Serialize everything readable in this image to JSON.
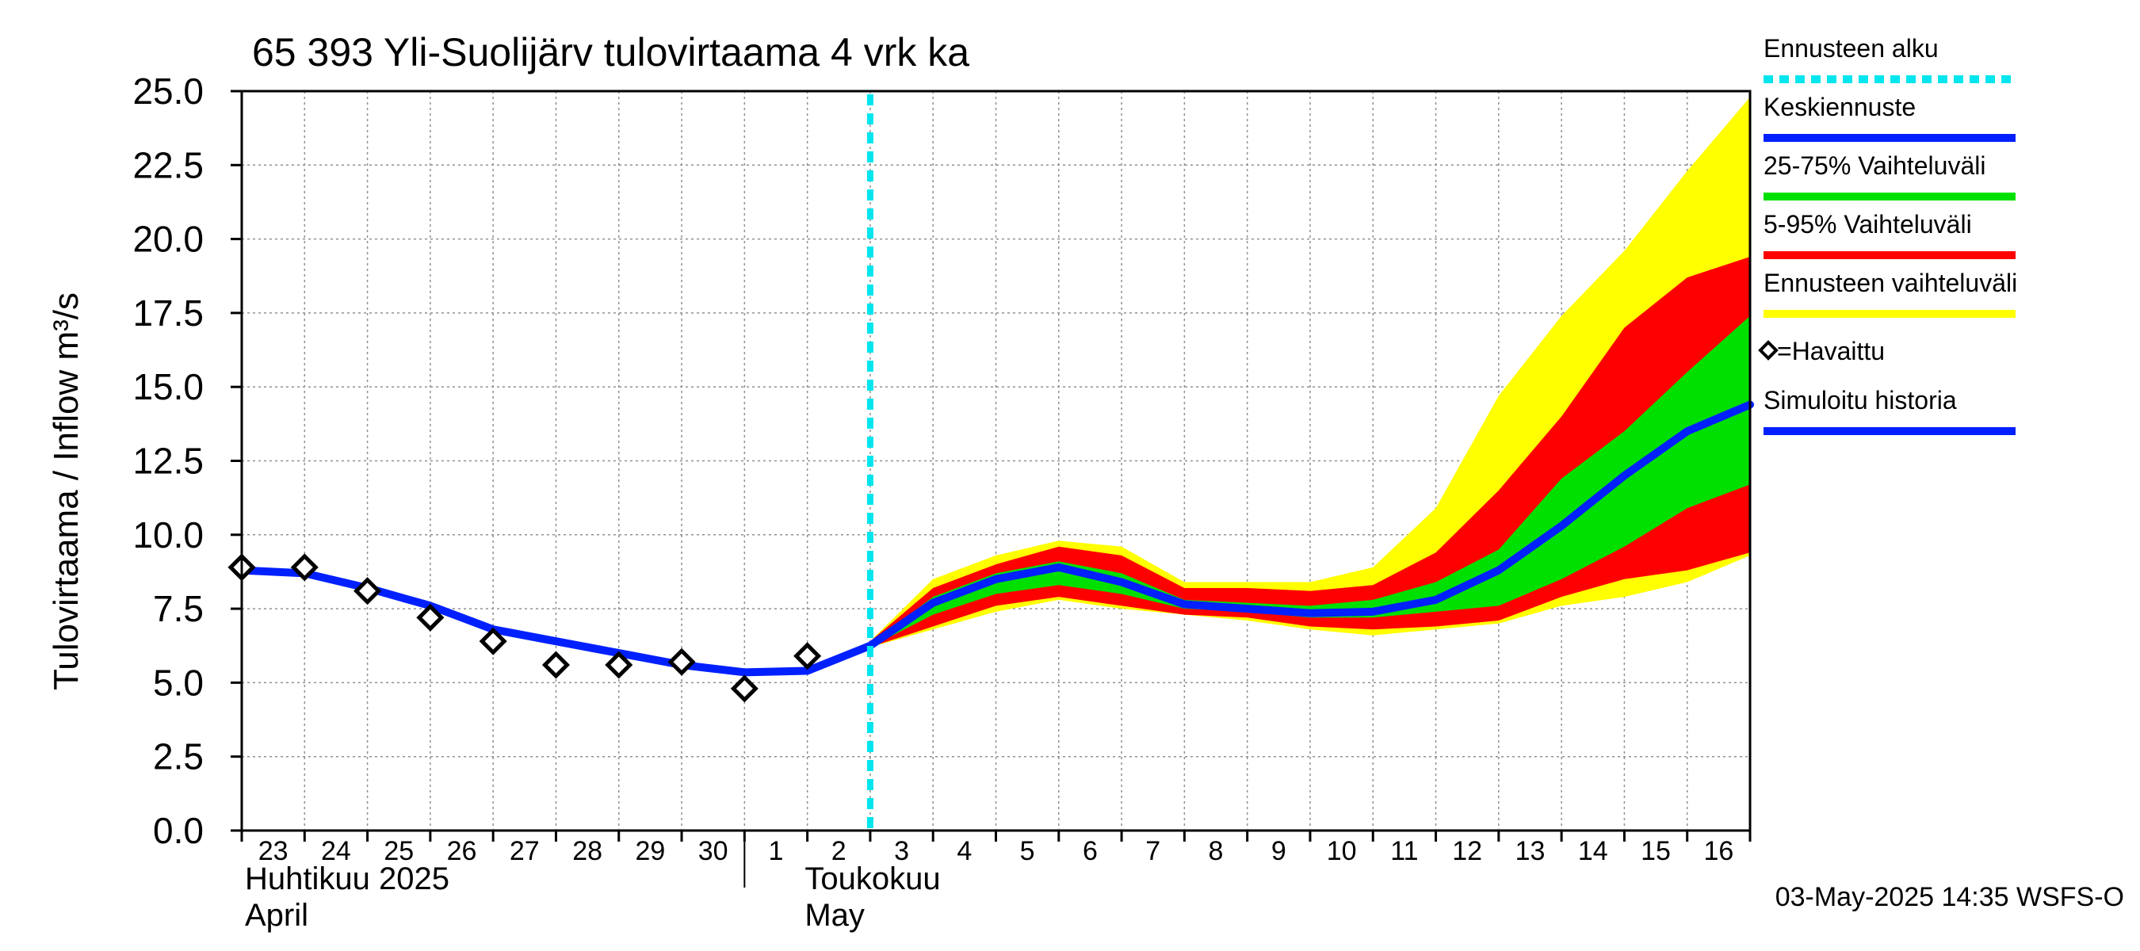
{
  "chart_data": {
    "type": "area",
    "title": "65 393 Yli-Suolijärv tulovirtaama 4 vrk ka",
    "ylabel": "Tulovirtaama / Inflow   m³/s",
    "ylim": [
      0,
      25
    ],
    "yticks": [
      "0.0",
      "2.5",
      "5.0",
      "7.5",
      "10.0",
      "12.5",
      "15.0",
      "17.5",
      "20.0",
      "22.5",
      "25.0"
    ],
    "x_range": [
      "2025-04-23",
      "2025-05-17"
    ],
    "xticks": [
      "23",
      "24",
      "25",
      "26",
      "27",
      "28",
      "29",
      "30",
      "1",
      "2",
      "3",
      "4",
      "5",
      "6",
      "7",
      "8",
      "9",
      "10",
      "11",
      "12",
      "13",
      "14",
      "15",
      "16"
    ],
    "month_labels": [
      {
        "fi": "Huhtikuu  2025",
        "en": "April"
      },
      {
        "fi": "Toukokuu",
        "en": "May"
      }
    ],
    "grid": true,
    "legend_position": "right",
    "forecast_start": "2025-05-03",
    "timestamp": "03-May-2025 14:35 WSFS-O",
    "legend": [
      {
        "label": "Ennusteen alku",
        "color": "#00e5ee",
        "style": "dashed"
      },
      {
        "label": "Keskiennuste",
        "color": "#0020ff",
        "style": "line"
      },
      {
        "label": "25-75% Vaihteluväli",
        "color": "#00e000",
        "style": "line"
      },
      {
        "label": "5-95% Vaihteluväli",
        "color": "#ff0000",
        "style": "line"
      },
      {
        "label": "Ennusteen vaihteluväli",
        "color": "#ffff00",
        "style": "line"
      },
      {
        "label": "=Havaittu",
        "color": "#000000",
        "style": "marker"
      },
      {
        "label": "Simuloitu historia",
        "color": "#0020ff",
        "style": "line"
      }
    ],
    "forecast_x": [
      "2025-05-03",
      "2025-05-04",
      "2025-05-05",
      "2025-05-06",
      "2025-05-07",
      "2025-05-08",
      "2025-05-09",
      "2025-05-10",
      "2025-05-11",
      "2025-05-12",
      "2025-05-13",
      "2025-05-14",
      "2025-05-15",
      "2025-05-16",
      "2025-05-17"
    ],
    "series": [
      {
        "name": "Ennusteen vaihteluväli",
        "kind": "band",
        "color": "#ffff00",
        "lower": [
          6.2,
          6.8,
          7.4,
          7.8,
          7.5,
          7.3,
          7.1,
          6.8,
          6.6,
          6.8,
          7.0,
          7.6,
          7.9,
          8.4,
          9.3
        ],
        "upper": [
          6.4,
          8.5,
          9.3,
          9.8,
          9.6,
          8.4,
          8.4,
          8.4,
          8.9,
          10.9,
          14.7,
          17.4,
          19.6,
          22.3,
          24.8
        ]
      },
      {
        "name": "5-95% Vaihteluväli",
        "kind": "band",
        "color": "#ff0000",
        "lower": [
          6.2,
          6.9,
          7.6,
          7.9,
          7.6,
          7.3,
          7.2,
          6.9,
          6.8,
          6.9,
          7.1,
          7.9,
          8.5,
          8.8,
          9.4
        ],
        "upper": [
          6.4,
          8.2,
          9.0,
          9.6,
          9.3,
          8.2,
          8.2,
          8.1,
          8.3,
          9.4,
          11.5,
          14.0,
          17.0,
          18.7,
          19.4
        ]
      },
      {
        "name": "25-75% Vaihteluväli",
        "kind": "band",
        "color": "#00e000",
        "lower": [
          6.2,
          7.3,
          8.0,
          8.3,
          8.0,
          7.5,
          7.4,
          7.2,
          7.2,
          7.4,
          7.6,
          8.5,
          9.6,
          10.9,
          11.7
        ],
        "upper": [
          6.3,
          7.9,
          8.7,
          9.1,
          8.7,
          7.8,
          7.7,
          7.6,
          7.8,
          8.4,
          9.5,
          11.9,
          13.5,
          15.5,
          17.4
        ]
      },
      {
        "name": "Keskiennuste",
        "kind": "line",
        "color": "#0020ff",
        "values": [
          6.25,
          7.7,
          8.5,
          8.9,
          8.4,
          7.65,
          7.5,
          7.35,
          7.4,
          7.8,
          8.8,
          10.3,
          12.0,
          13.5,
          14.4
        ]
      },
      {
        "name": "Simuloitu historia",
        "kind": "line",
        "color": "#0020ff",
        "x": [
          "2025-04-23",
          "2025-04-24",
          "2025-04-25",
          "2025-04-26",
          "2025-04-27",
          "2025-04-28",
          "2025-04-29",
          "2025-04-30",
          "2025-05-01",
          "2025-05-02",
          "2025-05-03"
        ],
        "values": [
          8.8,
          8.7,
          8.2,
          7.6,
          6.8,
          6.4,
          6.0,
          5.6,
          5.35,
          5.4,
          6.25
        ]
      },
      {
        "name": "Havaittu",
        "kind": "markers",
        "color": "#000000",
        "x": [
          "2025-04-23",
          "2025-04-24",
          "2025-04-25",
          "2025-04-26",
          "2025-04-27",
          "2025-04-28",
          "2025-04-29",
          "2025-04-30",
          "2025-05-01",
          "2025-05-02"
        ],
        "values": [
          8.9,
          8.9,
          8.1,
          7.2,
          6.4,
          5.6,
          5.6,
          5.7,
          4.8,
          5.9
        ]
      }
    ]
  }
}
